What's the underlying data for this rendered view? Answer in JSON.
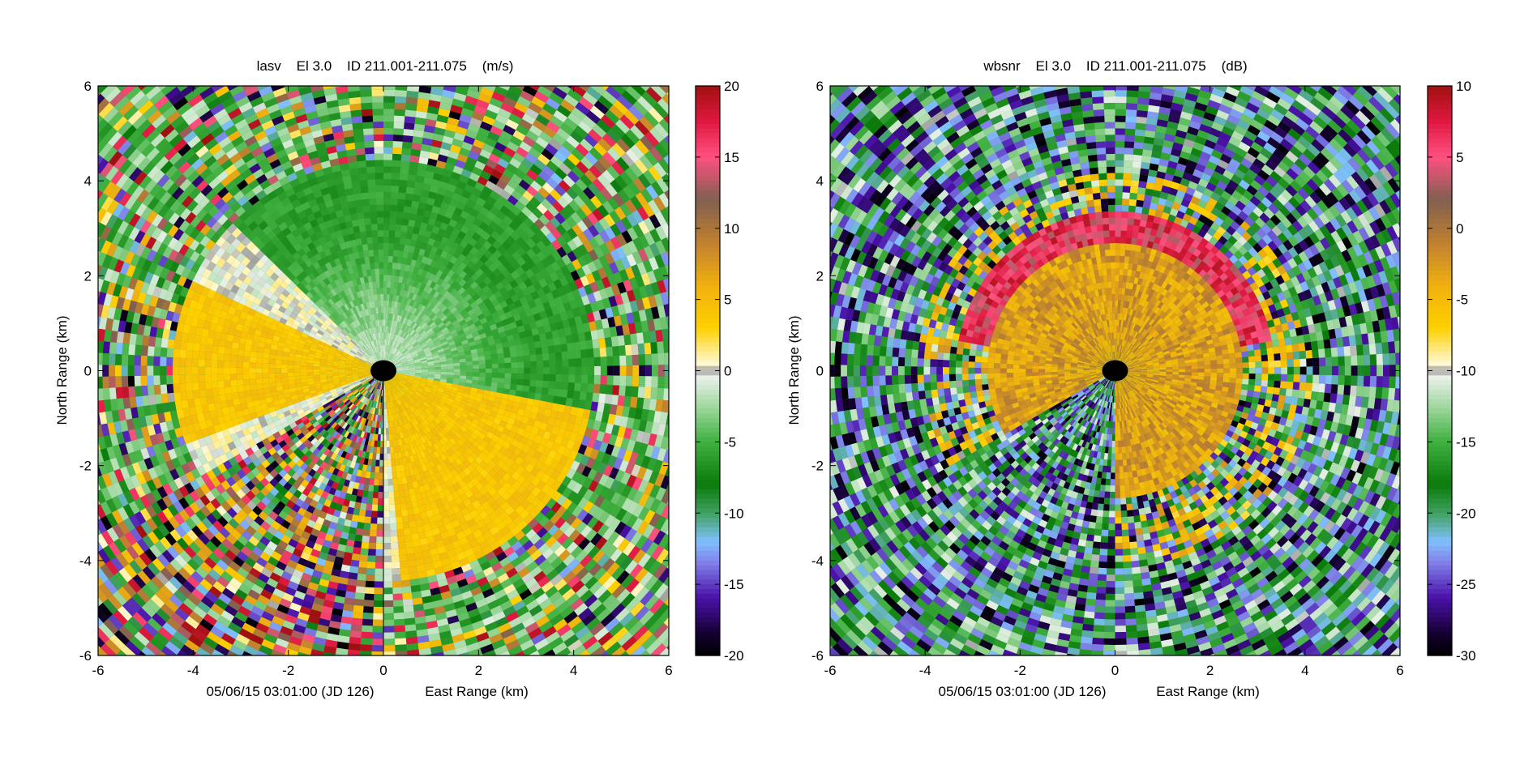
{
  "chart_data": [
    {
      "type": "heatmap",
      "plot_kind": "radar PPI (polar sweep)",
      "title": "lasv    El 3.0    ID 211.001-211.075    (m/s)",
      "xlabel": "East Range (km)",
      "ylabel": "North Range (km)",
      "timestamp": "05/06/15 03:01:00 (JD 126)",
      "xlim": [
        -6,
        6
      ],
      "ylim": [
        -6,
        6
      ],
      "xticks": [
        "-6",
        "-4",
        "-2",
        "0",
        "2",
        "4",
        "6"
      ],
      "yticks": [
        "-6",
        "-4",
        "-2",
        "0",
        "2",
        "4",
        "6"
      ],
      "colorbar": {
        "range": [
          -20,
          20
        ],
        "ticks": [
          "-20",
          "-15",
          "-10",
          "-5",
          "0",
          "5",
          "10",
          "15",
          "20"
        ],
        "stops": [
          {
            "v": -20,
            "color": "#000000"
          },
          {
            "v": -18.5,
            "color": "#140030"
          },
          {
            "v": -16,
            "color": "#4a10a8"
          },
          {
            "v": -13.5,
            "color": "#8080e8"
          },
          {
            "v": -12,
            "color": "#80c0ff"
          },
          {
            "v": -10,
            "color": "#40a060"
          },
          {
            "v": -8,
            "color": "#0a7a0a"
          },
          {
            "v": -5,
            "color": "#40b040"
          },
          {
            "v": -2.5,
            "color": "#a0d8a0"
          },
          {
            "v": -0.5,
            "color": "#e8f0e8"
          },
          {
            "v": 0,
            "color": "#a0a0a0"
          },
          {
            "v": 0.5,
            "color": "#fff8d0"
          },
          {
            "v": 3,
            "color": "#ffd000"
          },
          {
            "v": 6,
            "color": "#f0b010"
          },
          {
            "v": 9,
            "color": "#c08030"
          },
          {
            "v": 12,
            "color": "#806050"
          },
          {
            "v": 15,
            "color": "#ff5080"
          },
          {
            "v": 17.5,
            "color": "#e01840"
          },
          {
            "v": 20,
            "color": "#a01010"
          }
        ]
      },
      "field_description": {
        "green_sector_azimuth_deg": [
          -45,
          100
        ],
        "green_value": -6,
        "yellow_sector_azimuth_deg": [
          95,
          175
        ],
        "yellow_sector2_azimuth_deg": [
          -110,
          -65
        ],
        "yellow_value": 4,
        "coherent_range_km": 4.4,
        "blanked_sector_azimuth_deg": [
          180,
          240
        ]
      }
    },
    {
      "type": "heatmap",
      "plot_kind": "radar PPI (polar sweep)",
      "title": "wbsnr    El 3.0    ID 211.001-211.075    (dB)",
      "xlabel": "East Range (km)",
      "ylabel": "North Range (km)",
      "timestamp": "05/06/15 03:01:00 (JD 126)",
      "xlim": [
        -6,
        6
      ],
      "ylim": [
        -6,
        6
      ],
      "xticks": [
        "-6",
        "-4",
        "-2",
        "0",
        "2",
        "4",
        "6"
      ],
      "yticks": [
        "-6",
        "-4",
        "-2",
        "0",
        "2",
        "4",
        "6"
      ],
      "colorbar": {
        "range": [
          -30,
          10
        ],
        "ticks": [
          "-30",
          "-25",
          "-20",
          "-15",
          "-10",
          "-5",
          "0",
          "5",
          "10"
        ],
        "stops": [
          {
            "v": -30,
            "color": "#000000"
          },
          {
            "v": -28.5,
            "color": "#140030"
          },
          {
            "v": -26,
            "color": "#4a10a8"
          },
          {
            "v": -23.5,
            "color": "#8080e8"
          },
          {
            "v": -22,
            "color": "#80c0ff"
          },
          {
            "v": -20,
            "color": "#40a060"
          },
          {
            "v": -18,
            "color": "#0a7a0a"
          },
          {
            "v": -15,
            "color": "#40b040"
          },
          {
            "v": -12.5,
            "color": "#a0d8a0"
          },
          {
            "v": -10.5,
            "color": "#e8f0e8"
          },
          {
            "v": -10,
            "color": "#a0a0a0"
          },
          {
            "v": -9.5,
            "color": "#fff8d0"
          },
          {
            "v": -7,
            "color": "#ffd000"
          },
          {
            "v": -4,
            "color": "#f0b010"
          },
          {
            "v": -1,
            "color": "#c08030"
          },
          {
            "v": 2,
            "color": "#806050"
          },
          {
            "v": 5,
            "color": "#ff5080"
          },
          {
            "v": 7.5,
            "color": "#e01840"
          },
          {
            "v": 10,
            "color": "#a01010"
          }
        ]
      },
      "field_description": {
        "signal_range_km": 3.1,
        "core_value": -3,
        "ring_value": 6,
        "background_value": -20,
        "blanked_sector_azimuth_deg": [
          180,
          240
        ]
      }
    }
  ]
}
